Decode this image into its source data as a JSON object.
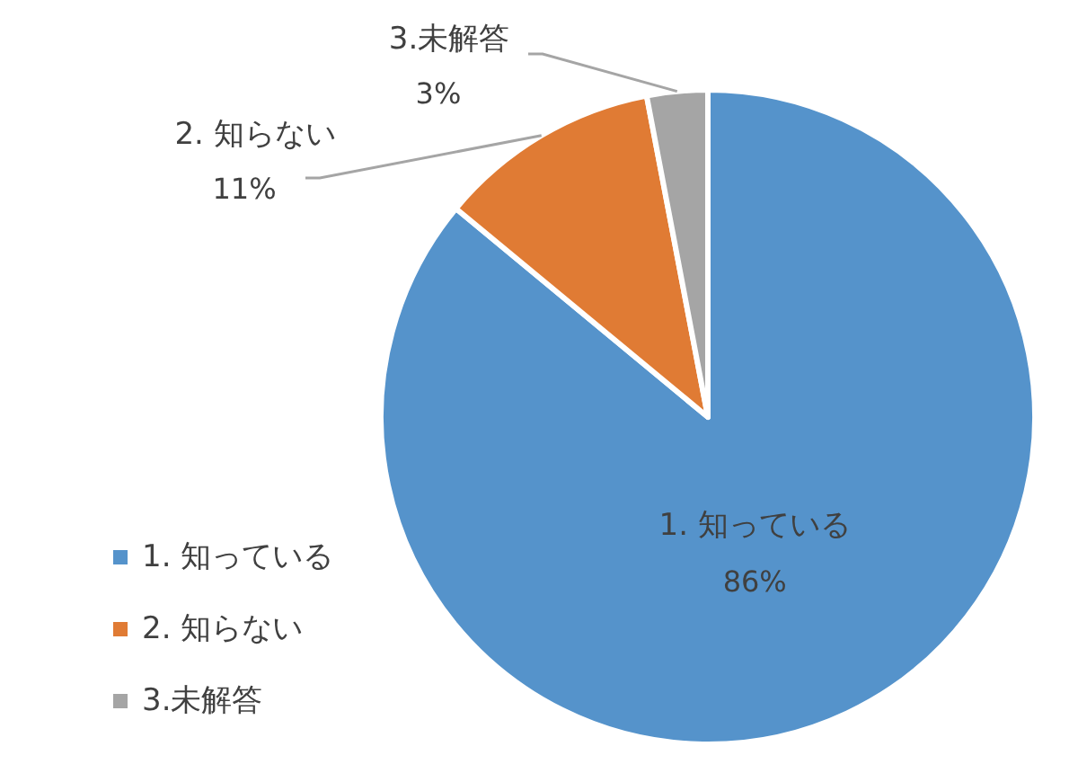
{
  "chart_data": {
    "type": "pie",
    "categories": [
      "1. 知っている",
      "2. 知らない",
      "3.未解答"
    ],
    "values": [
      86,
      11,
      3
    ],
    "colors": [
      "#5593cb",
      "#e07b34",
      "#a5a5a5"
    ],
    "value_labels": [
      "86%",
      "11%",
      "3%"
    ],
    "legend": "bottom left"
  }
}
